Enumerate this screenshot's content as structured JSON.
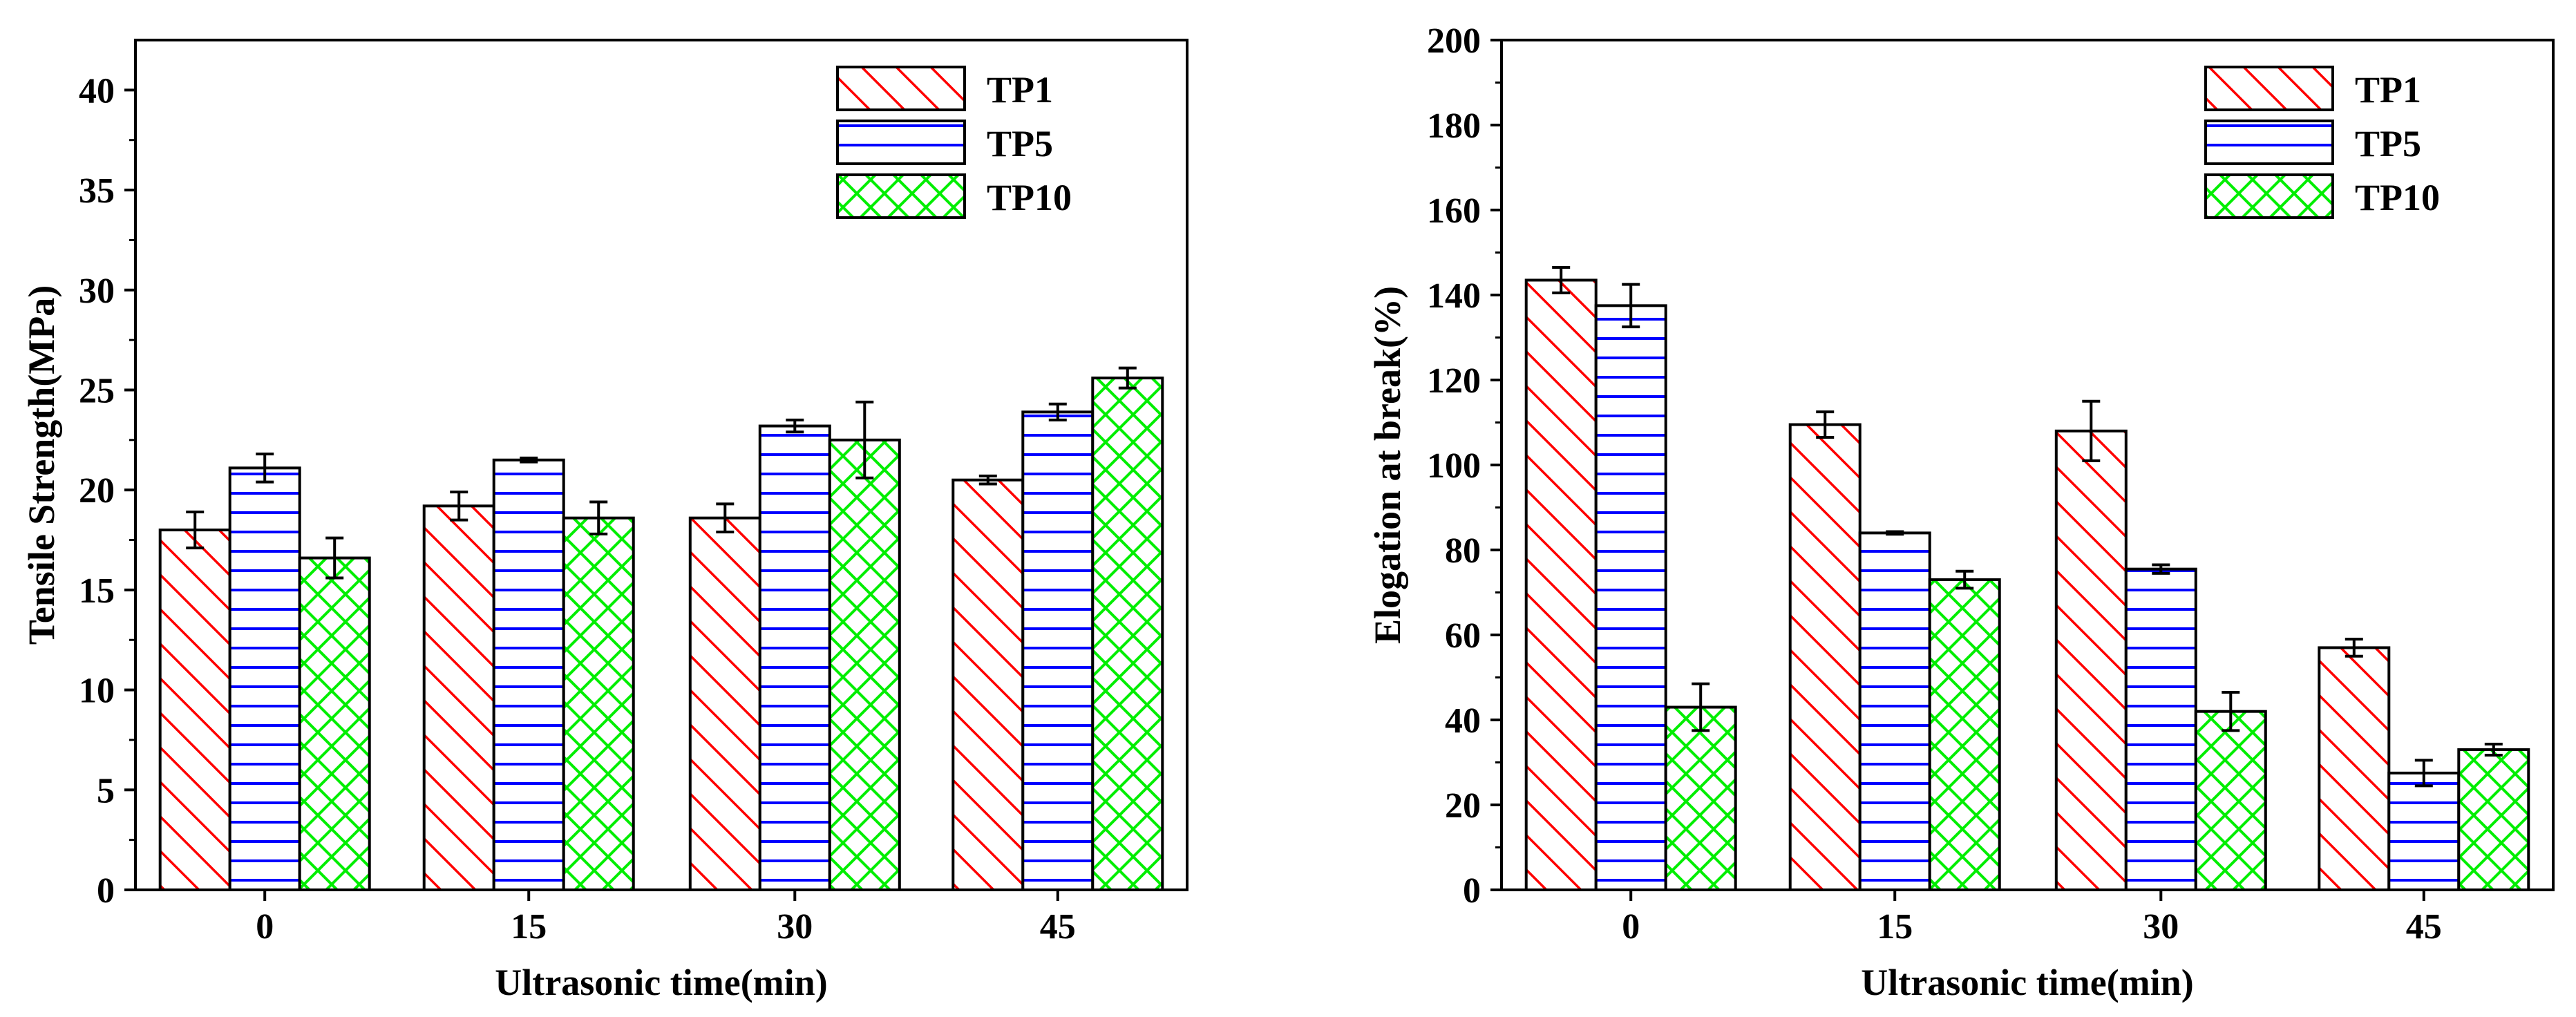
{
  "colors": {
    "TP1": "#ff0000",
    "TP5": "#0000ff",
    "TP10": "#00ee00",
    "axis": "#000000",
    "error_bar": "#000000"
  },
  "patterns": {
    "TP1": "diagonal-hatch",
    "TP5": "horizontal-lines",
    "TP10": "cross-hatch"
  },
  "chart_data": [
    {
      "type": "bar",
      "title": "",
      "xlabel": "Ultrasonic time(min)",
      "ylabel": "Tensile Strength(MPa)",
      "categories": [
        "0",
        "15",
        "30",
        "45"
      ],
      "ylim": [
        0,
        42.5
      ],
      "yticks": [
        "0",
        "5",
        "10",
        "15",
        "20",
        "25",
        "30",
        "35",
        "40"
      ],
      "legend_position": "top-right",
      "series": [
        {
          "name": "TP1",
          "values": [
            18.0,
            19.2,
            18.6,
            20.5
          ],
          "errors": [
            0.9,
            0.7,
            0.7,
            0.2
          ]
        },
        {
          "name": "TP5",
          "values": [
            21.1,
            21.5,
            23.2,
            23.9
          ],
          "errors": [
            0.7,
            0.1,
            0.3,
            0.4
          ]
        },
        {
          "name": "TP10",
          "values": [
            16.6,
            18.6,
            22.5,
            25.6
          ],
          "errors": [
            1.0,
            0.8,
            1.9,
            0.5
          ]
        }
      ]
    },
    {
      "type": "bar",
      "title": "",
      "xlabel": "Ultrasonic time(min)",
      "ylabel": "Elogation at break(%)",
      "categories": [
        "0",
        "15",
        "30",
        "45"
      ],
      "ylim": [
        0,
        200
      ],
      "yticks": [
        "0",
        "20",
        "40",
        "60",
        "80",
        "100",
        "120",
        "140",
        "160",
        "180",
        "200"
      ],
      "legend_position": "top-right",
      "series": [
        {
          "name": "TP1",
          "values": [
            143.5,
            109.5,
            108.0,
            57.0
          ],
          "errors": [
            3.0,
            3.0,
            7.0,
            2.0
          ]
        },
        {
          "name": "TP5",
          "values": [
            137.5,
            84.0,
            75.5,
            27.5
          ],
          "errors": [
            5.0,
            0.3,
            1.0,
            3.0
          ]
        },
        {
          "name": "TP10",
          "values": [
            43.0,
            73.0,
            42.0,
            33.0
          ],
          "errors": [
            5.5,
            2.0,
            4.5,
            1.3
          ]
        }
      ]
    }
  ]
}
